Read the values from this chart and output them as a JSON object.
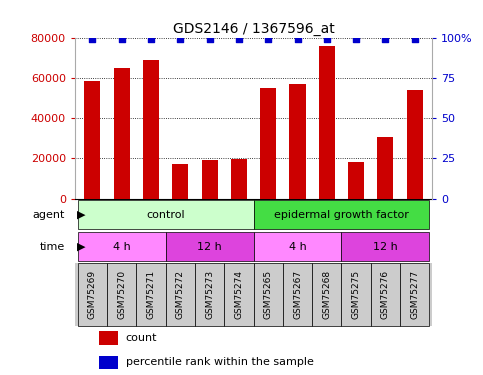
{
  "title": "GDS2146 / 1367596_at",
  "samples": [
    "GSM75269",
    "GSM75270",
    "GSM75271",
    "GSM75272",
    "GSM75273",
    "GSM75274",
    "GSM75265",
    "GSM75267",
    "GSM75268",
    "GSM75275",
    "GSM75276",
    "GSM75277"
  ],
  "counts": [
    58500,
    65000,
    69000,
    17000,
    19000,
    19500,
    55000,
    57000,
    76000,
    18000,
    30500,
    54000
  ],
  "percentiles": [
    99,
    99,
    99,
    99,
    99,
    99,
    99,
    99,
    99,
    99,
    99,
    99
  ],
  "bar_color": "#cc0000",
  "dot_color": "#0000cc",
  "ylim_left": [
    0,
    80000
  ],
  "ylim_right": [
    0,
    100
  ],
  "yticks_left": [
    0,
    20000,
    40000,
    60000,
    80000
  ],
  "yticks_right": [
    0,
    25,
    50,
    75,
    100
  ],
  "agent_groups": [
    {
      "label": "control",
      "start": 0,
      "end": 6,
      "color": "#ccffcc"
    },
    {
      "label": "epidermal growth factor",
      "start": 6,
      "end": 12,
      "color": "#44dd44"
    }
  ],
  "time_groups": [
    {
      "label": "4 h",
      "start": 0,
      "end": 3,
      "color": "#ff88ff"
    },
    {
      "label": "12 h",
      "start": 3,
      "end": 6,
      "color": "#dd44dd"
    },
    {
      "label": "4 h",
      "start": 6,
      "end": 9,
      "color": "#ff88ff"
    },
    {
      "label": "12 h",
      "start": 9,
      "end": 12,
      "color": "#dd44dd"
    }
  ],
  "legend_count_color": "#cc0000",
  "legend_dot_color": "#0000cc",
  "bg_color": "#ffffff",
  "grid_color": "#000000",
  "tick_color_left": "#cc0000",
  "tick_color_right": "#0000cc",
  "xaxis_bg": "#cccccc",
  "sample_box_bg": "#cccccc"
}
